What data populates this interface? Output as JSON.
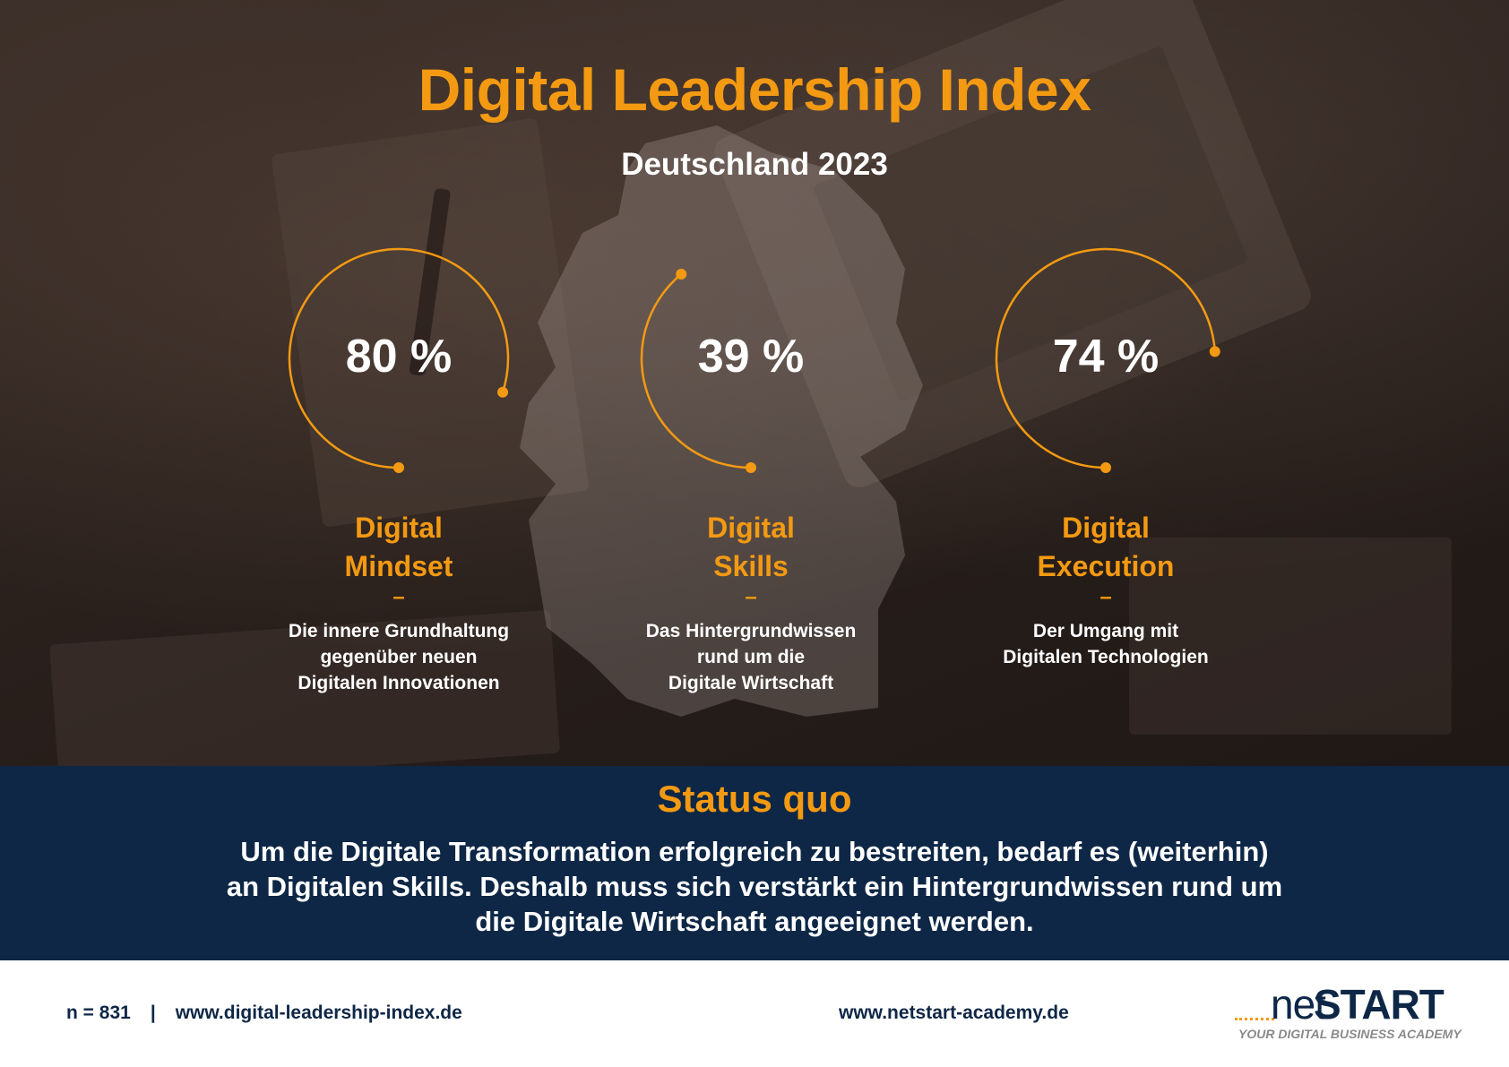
{
  "title": "Digital Leadership Index",
  "subtitle": "Deutschland 2023",
  "colors": {
    "accent": "#f39a12",
    "navy": "#0e2746",
    "text": "#ffffff"
  },
  "chart_data": {
    "type": "gauge",
    "metrics": [
      {
        "name_line1": "Digital",
        "name_line2": "Mindset",
        "value": 80,
        "label": "80 %",
        "dash": "–",
        "desc_lines": [
          "Die innere Grundhaltung",
          "gegenüber neuen",
          "Digitalen Innovationen"
        ]
      },
      {
        "name_line1": "Digital",
        "name_line2": "Skills",
        "value": 39,
        "label": "39 %",
        "dash": "–",
        "desc_lines": [
          "Das Hintergrundwissen",
          "rund um die",
          "Digitale Wirtschaft"
        ]
      },
      {
        "name_line1": "Digital",
        "name_line2": "Execution",
        "value": 74,
        "label": "74 %",
        "dash": "–",
        "desc_lines": [
          "Der Umgang mit",
          "Digitalen Technologien"
        ]
      }
    ]
  },
  "status": {
    "heading": "Status quo",
    "lines": [
      "Um die Digitale Transformation erfolgreich zu bestreiten, bedarf es (weiterhin)",
      "an Digitalen Skills. Deshalb muss sich verstärkt ein Hintergrundwissen rund um",
      "die Digitale Wirtschaft angeeignet werden."
    ]
  },
  "footer": {
    "sample": "n = 831",
    "separator": "|",
    "url_index": "www.digital-leadership-index.de",
    "url_academy": "www.netstart-academy.de",
    "logo_net": "net",
    "logo_start": "START",
    "logo_tagline": "YOUR DIGITAL BUSINESS ACADEMY"
  }
}
